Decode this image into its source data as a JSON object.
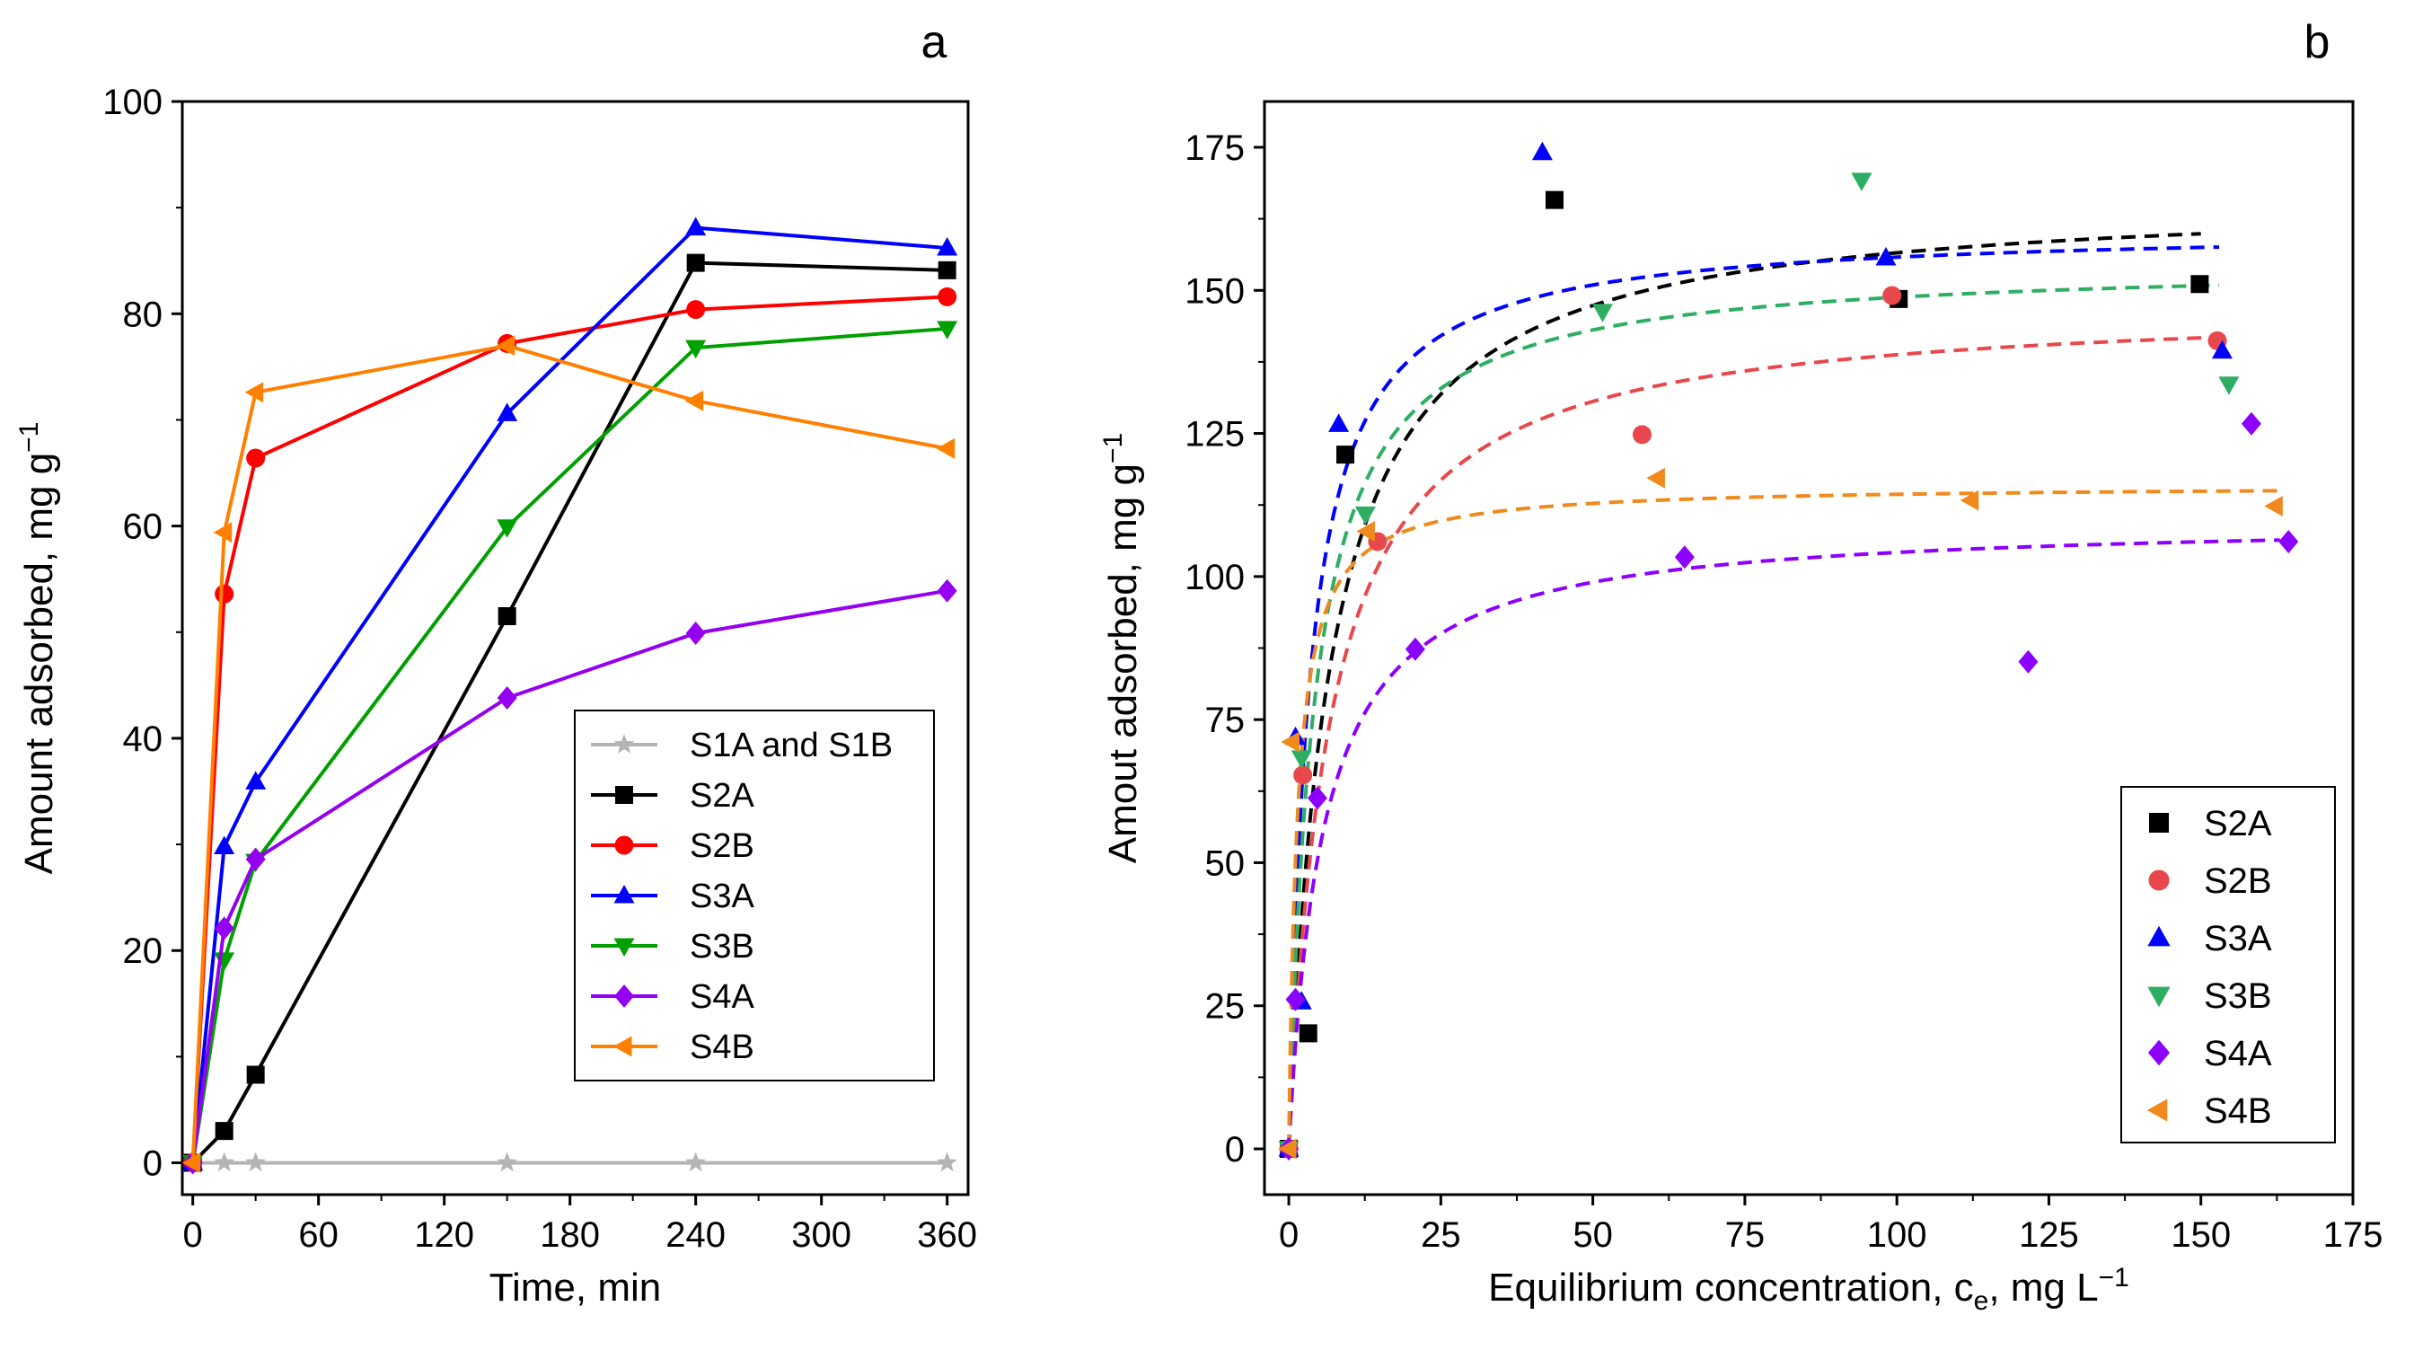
{
  "chart_data": [
    {
      "type": "line",
      "panel_label": "a",
      "xlabel": "Time, min",
      "ylabel": "Amount adsorbed, mg g",
      "ylabel_sup": "−1",
      "xlim": [
        -5,
        370
      ],
      "ylim": [
        -3,
        100
      ],
      "xticks": [
        0,
        60,
        120,
        180,
        240,
        300,
        360
      ],
      "yticks": [
        0,
        20,
        40,
        60,
        80,
        100
      ],
      "legend_position": "center-right",
      "series": [
        {
          "name": "S1A and S1B",
          "color": "#b4b4b4",
          "marker": "star",
          "x": [
            0,
            15,
            30,
            150,
            240,
            360
          ],
          "y": [
            0,
            0,
            0,
            0,
            0,
            0
          ]
        },
        {
          "name": "S2A",
          "color": "#000000",
          "marker": "square",
          "x": [
            0,
            15,
            30,
            150,
            240,
            360
          ],
          "y": [
            0,
            3,
            8.3,
            51.5,
            84.8,
            84.1
          ]
        },
        {
          "name": "S2B",
          "color": "#ff0000",
          "marker": "circle",
          "x": [
            0,
            15,
            30,
            150,
            240,
            360
          ],
          "y": [
            0,
            53.6,
            66.4,
            77.2,
            80.4,
            81.6
          ]
        },
        {
          "name": "S3A",
          "color": "#0000ff",
          "marker": "triangle-up",
          "x": [
            0,
            15,
            30,
            150,
            240,
            360
          ],
          "y": [
            0,
            29.8,
            35.9,
            70.6,
            88.1,
            86.2
          ]
        },
        {
          "name": "S3B",
          "color": "#00a000",
          "marker": "triangle-down",
          "x": [
            0,
            15,
            30,
            150,
            240,
            360
          ],
          "y": [
            0,
            19.1,
            28.4,
            59.9,
            76.8,
            78.6
          ]
        },
        {
          "name": "S4A",
          "color": "#9400f0",
          "marker": "diamond",
          "x": [
            0,
            15,
            30,
            150,
            240,
            360
          ],
          "y": [
            0,
            22.1,
            28.6,
            43.8,
            49.9,
            53.9
          ]
        },
        {
          "name": "S4B",
          "color": "#ff8000",
          "marker": "triangle-left",
          "x": [
            0,
            15,
            30,
            150,
            240,
            360
          ],
          "y": [
            0,
            59.4,
            72.6,
            77,
            71.8,
            67.3
          ]
        }
      ]
    },
    {
      "type": "scatter",
      "panel_label": "b",
      "xlabel": "Equilibrium concentration, c",
      "xlabel_sub": "e",
      "xlabel_tail": ", mg L",
      "xlabel_sup": "−1",
      "ylabel": "Amout adsorbed, mg g",
      "ylabel_sup": "−1",
      "xlim": [
        -4,
        175
      ],
      "ylim": [
        -8,
        183
      ],
      "xticks": [
        0,
        25,
        50,
        75,
        100,
        125,
        150,
        175
      ],
      "yticks": [
        0,
        25,
        50,
        75,
        100,
        125,
        150,
        175
      ],
      "legend_position": "bottom-right",
      "series": [
        {
          "name": "S2A",
          "color": "#000000",
          "marker": "square",
          "x": [
            0,
            3.2,
            9.3,
            43.7,
            100.3,
            149.8
          ],
          "y": [
            0,
            20.2,
            121.3,
            165.8,
            148.5,
            151.1
          ],
          "fit": {
            "qmax": 167,
            "K": 0.15,
            "xmax": 150
          }
        },
        {
          "name": "S2B",
          "color": "#e8484c",
          "marker": "circle",
          "x": [
            0,
            2.3,
            14.6,
            58.1,
            99.2,
            152.7
          ],
          "y": [
            0,
            65.3,
            106.1,
            124.8,
            149.1,
            141.2
          ],
          "fit": {
            "qmax": 148,
            "K": 0.15,
            "xmax": 153
          }
        },
        {
          "name": "S3A",
          "color": "#0000ff",
          "marker": "triangle-up",
          "x": [
            0,
            1.1,
            2.1,
            8.2,
            41.7,
            98.2,
            153.5
          ],
          "y": [
            0,
            71.9,
            25.7,
            126.6,
            174.1,
            155.7,
            139.4
          ],
          "fit": {
            "qmax": 161,
            "K": 0.3,
            "xmax": 153
          }
        },
        {
          "name": "S3B",
          "color": "#2eae62",
          "marker": "triangle-down",
          "x": [
            0,
            2.1,
            12.6,
            51.6,
            94.2,
            154.6
          ],
          "y": [
            0,
            68.3,
            110.9,
            146.3,
            169.2,
            133.6
          ],
          "fit": {
            "qmax": 155,
            "K": 0.24,
            "xmax": 153
          }
        },
        {
          "name": "S4A",
          "color": "#8b00ff",
          "marker": "diamond",
          "x": [
            0,
            1.1,
            4.7,
            20.8,
            65.1,
            121.6,
            158.3,
            164.4
          ],
          "y": [
            0,
            26.1,
            61.3,
            87.3,
            103.4,
            85.1,
            126.7,
            106.1
          ],
          "fit": {
            "qmax": 110,
            "K": 0.18,
            "xmax": 163
          }
        },
        {
          "name": "S4B",
          "color": "#f08a1c",
          "marker": "triangle-left",
          "x": [
            0,
            0.5,
            12.9,
            60.6,
            112.2,
            162.2
          ],
          "y": [
            0,
            71.1,
            107.9,
            117.2,
            113.3,
            112.3
          ],
          "fit": {
            "qmax": 116,
            "K": 0.7,
            "xmax": 163
          }
        }
      ]
    }
  ]
}
